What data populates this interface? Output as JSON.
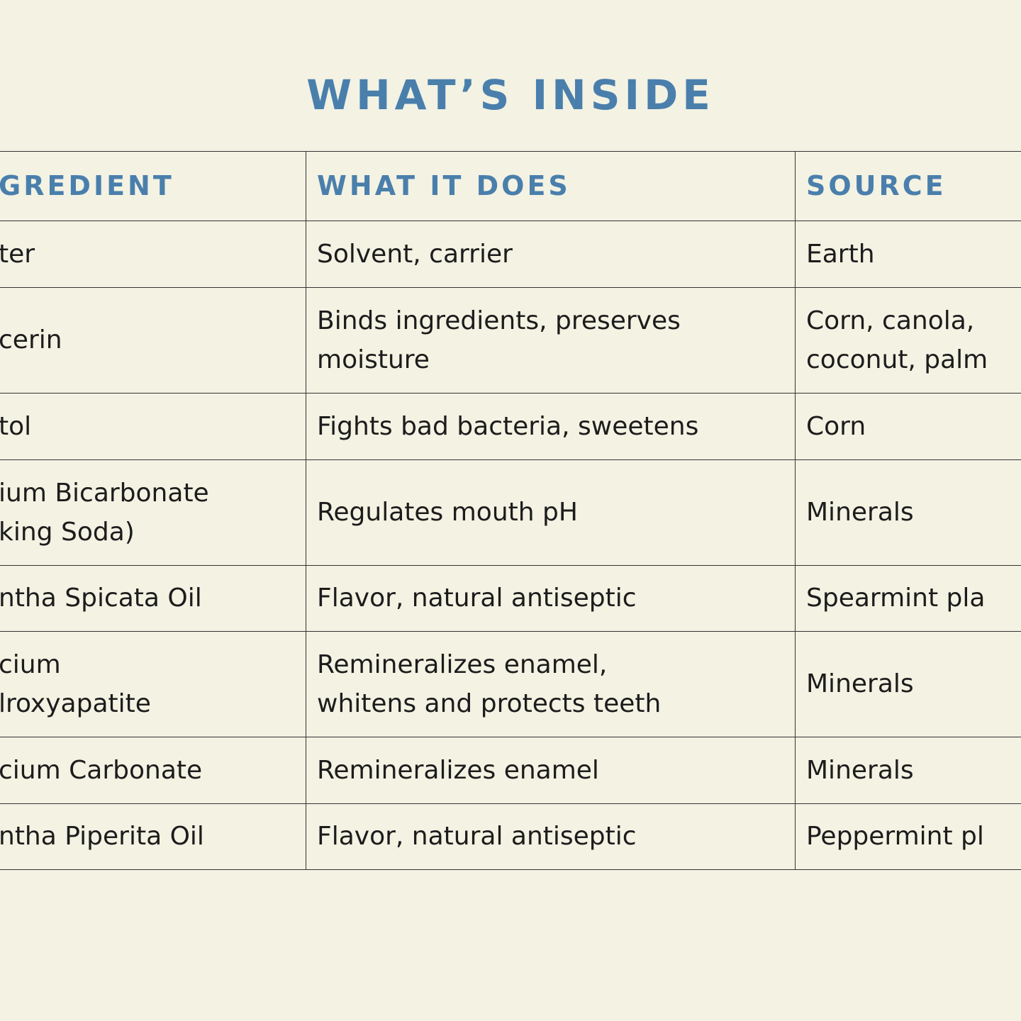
{
  "header": {
    "title": "WHAT’S INSIDE"
  },
  "table": {
    "columns": [
      "GREDIENT",
      "WHAT IT DOES",
      "SOURCE"
    ],
    "rows": [
      [
        [
          "ter"
        ],
        [
          "Solvent, carrier"
        ],
        [
          "Earth"
        ]
      ],
      [
        [
          "cerin"
        ],
        [
          "Binds ingredients, preserves",
          "moisture"
        ],
        [
          "Corn, canola,",
          "coconut, palm"
        ]
      ],
      [
        [
          "tol"
        ],
        [
          "Fights bad bacteria, sweetens"
        ],
        [
          "Corn"
        ]
      ],
      [
        [
          "ium Bicarbonate",
          "king Soda)"
        ],
        [
          "Regulates mouth pH"
        ],
        [
          "Minerals"
        ]
      ],
      [
        [
          "ntha Spicata Oil"
        ],
        [
          "Flavor, natural antiseptic"
        ],
        [
          "Spearmint pla"
        ]
      ],
      [
        [
          "cium",
          "lroxyapatite"
        ],
        [
          "Remineralizes enamel,",
          "whitens and protects teeth"
        ],
        [
          "Minerals"
        ]
      ],
      [
        [
          "cium Carbonate"
        ],
        [
          "Remineralizes enamel"
        ],
        [
          "Minerals"
        ]
      ],
      [
        [
          "ntha Piperita Oil"
        ],
        [
          "Flavor, natural antiseptic"
        ],
        [
          "Peppermint pl"
        ]
      ]
    ]
  }
}
